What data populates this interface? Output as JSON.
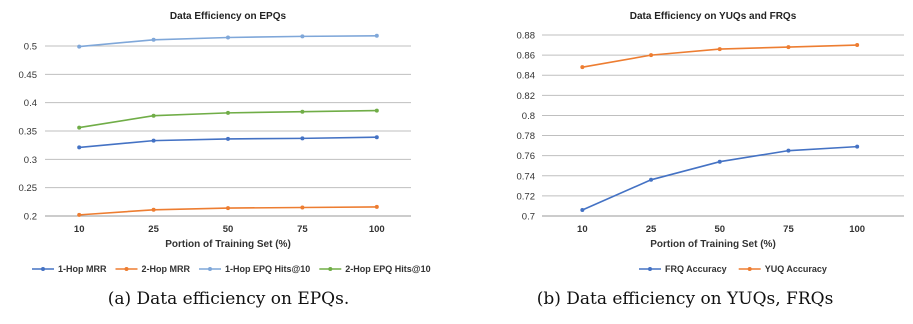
{
  "chart_data": [
    {
      "type": "line",
      "title": "Data Efficiency on EPQs",
      "xlabel": "Portion of Training Set (%)",
      "ylabel": "",
      "x": [
        10,
        25,
        50,
        75,
        100
      ],
      "ylim": [
        0.2,
        0.5
      ],
      "yticks": [
        "0.2",
        "0.25",
        "0.3",
        "0.35",
        "0.4",
        "0.45",
        "0.5"
      ],
      "grid": true,
      "legend": "bottom",
      "series": [
        {
          "name": "1-Hop MRR",
          "values": [
            0.321,
            0.333,
            0.336,
            0.337,
            0.339
          ],
          "color": "#4472C4"
        },
        {
          "name": "2-Hop MRR",
          "values": [
            0.202,
            0.211,
            0.214,
            0.215,
            0.216
          ],
          "color": "#ED7D31"
        },
        {
          "name": "1-Hop EPQ Hits@10",
          "values": [
            0.499,
            0.511,
            0.515,
            0.517,
            0.518
          ],
          "color": "#7FA7D9"
        },
        {
          "name": "2-Hop EPQ Hits@10",
          "values": [
            0.356,
            0.377,
            0.382,
            0.384,
            0.386
          ],
          "color": "#70AD47"
        }
      ]
    },
    {
      "type": "line",
      "title": "Data Efficiency on YUQs and FRQs",
      "xlabel": "Portion of Training Set (%)",
      "ylabel": "",
      "x": [
        10,
        25,
        50,
        75,
        100
      ],
      "ylim": [
        0.7,
        0.88
      ],
      "yticks": [
        "0.7",
        "0.72",
        "0.74",
        "0.76",
        "0.78",
        "0.8",
        "0.82",
        "0.84",
        "0.86",
        "0.88"
      ],
      "grid": true,
      "legend": "bottom",
      "series": [
        {
          "name": "FRQ Accuracy",
          "values": [
            0.706,
            0.736,
            0.754,
            0.765,
            0.769
          ],
          "color": "#4472C4"
        },
        {
          "name": "YUQ Accuracy",
          "values": [
            0.848,
            0.86,
            0.866,
            0.868,
            0.87
          ],
          "color": "#ED7D31"
        }
      ]
    }
  ],
  "captions": {
    "a": "(a) Data efficiency on EPQs.",
    "b": "(b) Data efficiency on YUQs, FRQs"
  }
}
